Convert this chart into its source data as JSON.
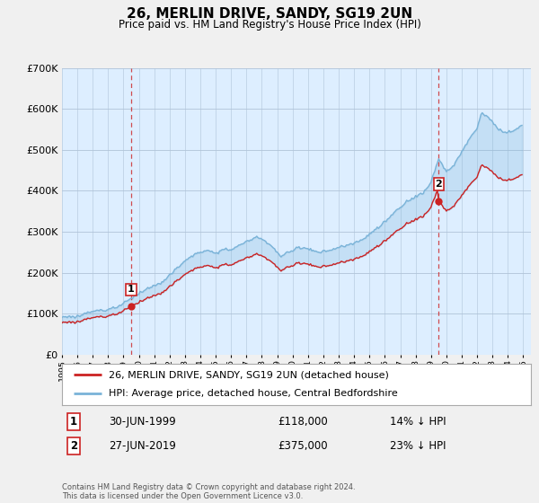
{
  "title": "26, MERLIN DRIVE, SANDY, SG19 2UN",
  "subtitle": "Price paid vs. HM Land Registry's House Price Index (HPI)",
  "legend_line1": "26, MERLIN DRIVE, SANDY, SG19 2UN (detached house)",
  "legend_line2": "HPI: Average price, detached house, Central Bedfordshire",
  "footnote": "Contains HM Land Registry data © Crown copyright and database right 2024.\nThis data is licensed under the Open Government Licence v3.0.",
  "sale1_label": "1",
  "sale1_date": "30-JUN-1999",
  "sale1_price": "£118,000",
  "sale1_hpi": "14% ↓ HPI",
  "sale2_label": "2",
  "sale2_date": "27-JUN-2019",
  "sale2_price": "£375,000",
  "sale2_hpi": "23% ↓ HPI",
  "hpi_color": "#7ab3d8",
  "price_color": "#cc2222",
  "marker_color": "#cc2222",
  "vline_color": "#cc2222",
  "plot_bg_color": "#ddeeff",
  "background_color": "#f0f0f0",
  "legend_bg": "#ffffff",
  "sale1_x": 1999.5,
  "sale1_y": 118000,
  "sale2_x": 2019.5,
  "sale2_y": 375000,
  "hpi_at_sale1": 137209,
  "hpi_at_sale2": 487013,
  "ylim": [
    0,
    700000
  ],
  "xlim_start": 1995.0,
  "xlim_end": 2025.5
}
